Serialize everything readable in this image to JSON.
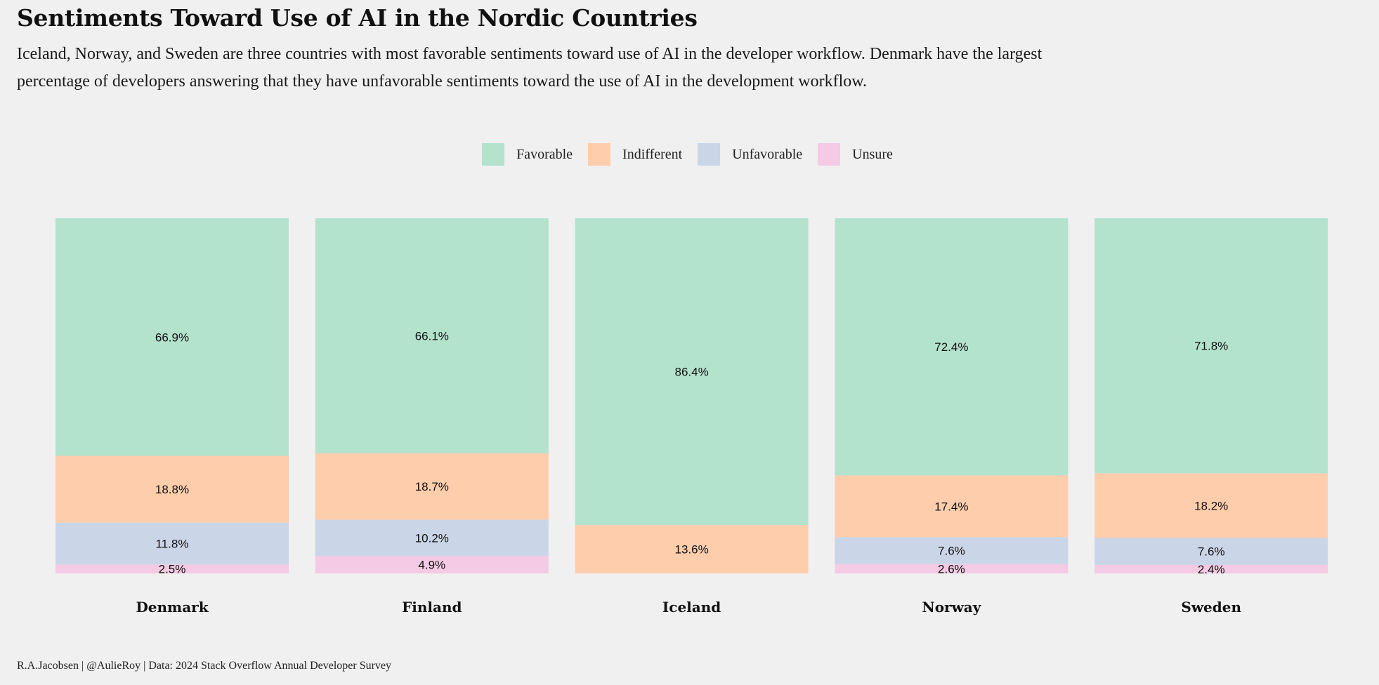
{
  "title": "Sentiments Toward Use of AI in the Nordic Countries",
  "subtitle": "Iceland, Norway, and Sweden are three countries with most favorable sentiments toward use of AI in the developer workflow. Denmark have the largest percentage of developers answering that they have unfavorable sentiments toward the use of AI in the development workflow.",
  "credit": "R.A.Jacobsen | @AulieRoy | Data: 2024 Stack Overflow Annual Developer Survey",
  "colors": {
    "Favorable": "#b3e2cd",
    "Indifferent": "#fdcdac",
    "Unfavorable": "#cbd5e8",
    "Unsure": "#f4cae4",
    "background": "#f0f0f0"
  },
  "legend": [
    {
      "label": "Favorable",
      "color": "#b3e2cd"
    },
    {
      "label": "Indifferent",
      "color": "#fdcdac"
    },
    {
      "label": "Unfavorable",
      "color": "#cbd5e8"
    },
    {
      "label": "Unsure",
      "color": "#f4cae4"
    }
  ],
  "chart_data": {
    "type": "bar",
    "stacked": true,
    "normalized": true,
    "title": "Sentiments Toward Use of AI in the Nordic Countries",
    "categories": [
      "Denmark",
      "Finland",
      "Iceland",
      "Norway",
      "Sweden"
    ],
    "series": [
      {
        "name": "Unsure",
        "values": [
          2.5,
          4.9,
          0,
          2.6,
          2.4
        ],
        "labels": [
          "2.5%",
          "4.9%",
          "",
          "2.6%",
          "2.4%"
        ]
      },
      {
        "name": "Unfavorable",
        "values": [
          11.8,
          10.2,
          0,
          7.6,
          7.6
        ],
        "labels": [
          "11.8%",
          "10.2%",
          "",
          "7.6%",
          "7.6%"
        ]
      },
      {
        "name": "Indifferent",
        "values": [
          18.8,
          18.7,
          13.6,
          17.4,
          18.2
        ],
        "labels": [
          "18.8%",
          "18.7%",
          "13.6%",
          "17.4%",
          "18.2%"
        ]
      },
      {
        "name": "Favorable",
        "values": [
          66.9,
          66.1,
          86.4,
          72.4,
          71.8
        ],
        "labels": [
          "66.9%",
          "66.1%",
          "86.4%",
          "72.4%",
          "71.8%"
        ]
      }
    ],
    "xlabel": "",
    "ylabel": "",
    "ylim": [
      0,
      100
    ],
    "grid": false,
    "legend_position": "top-center"
  }
}
